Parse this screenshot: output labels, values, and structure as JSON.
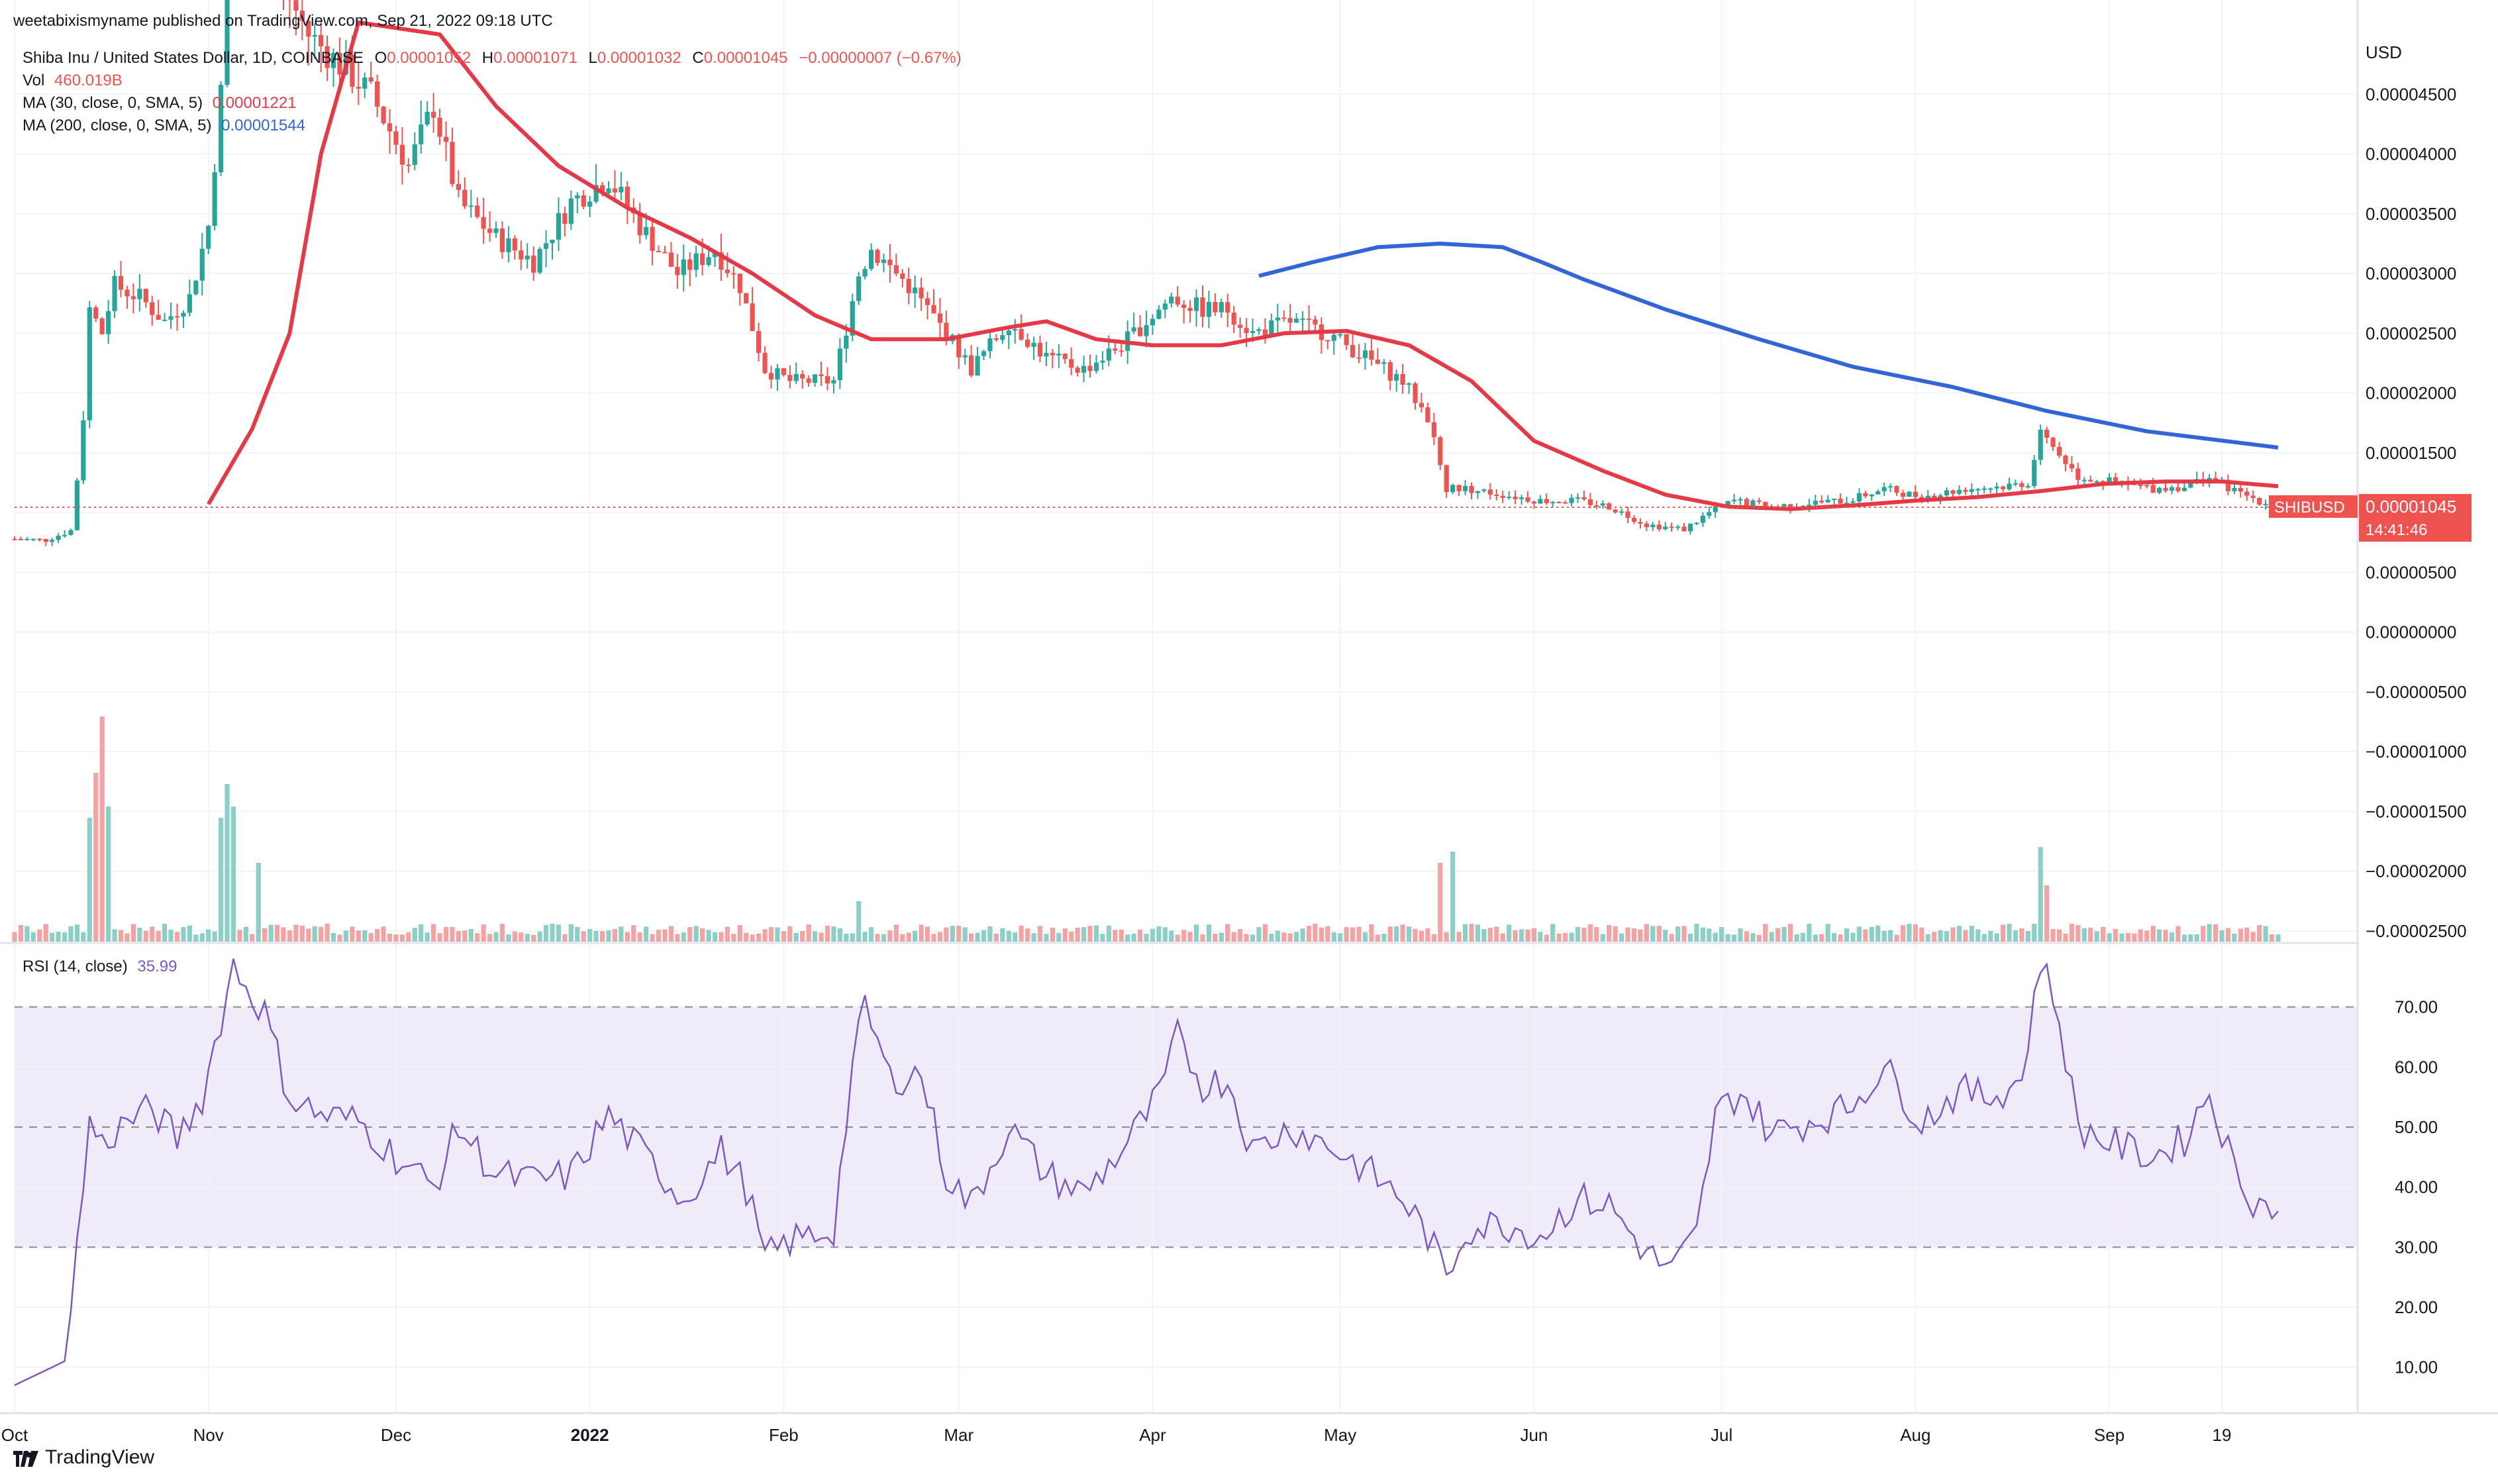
{
  "header": {
    "publisher": "weetabixismyname published on TradingView.com, Sep 21, 2022 09:18 UTC"
  },
  "legend": {
    "symbol": "Shiba Inu / United States Dollar, 1D, COINBASE",
    "ohlc": {
      "o_label": "O",
      "o": "0.00001052",
      "h_label": "H",
      "h": "0.00001071",
      "l_label": "L",
      "l": "0.00001032",
      "c_label": "C",
      "c": "0.00001045",
      "change": "−0.00000007 (−0.67%)"
    },
    "vol_label": "Vol",
    "vol": "460.019B",
    "ma30_label": "MA (30, close, 0, SMA, 5)",
    "ma30": "0.00001221",
    "ma200_label": "MA (200, close, 0, SMA, 5)",
    "ma200": "0.00001544",
    "rsi_label": "RSI (14, close)",
    "rsi": "35.99"
  },
  "price_axis": {
    "currency": "USD",
    "ticks": [
      "0.00004500",
      "0.00004000",
      "0.00003500",
      "0.00003000",
      "0.00002500",
      "0.00002000",
      "0.00001500",
      "0.00001000",
      "0.00000500",
      "0.00000000",
      "−0.00000500",
      "−0.00001000",
      "−0.00001500",
      "−0.00002000",
      "−0.00002500"
    ],
    "tick_values": [
      4.5e-05,
      4e-05,
      3.5e-05,
      3e-05,
      2.5e-05,
      2e-05,
      1.5e-05,
      1e-05,
      5e-06,
      0,
      -5e-06,
      -1e-05,
      -1.5e-05,
      -2e-05,
      -2.5e-05
    ],
    "last_price_label": "0.00001045",
    "symbol_badge": "SHIBUSD",
    "countdown": "14:41:46"
  },
  "rsi_axis": {
    "ticks": [
      "70.00",
      "60.00",
      "50.00",
      "40.00",
      "30.00",
      "20.00",
      "10.00"
    ],
    "tick_values": [
      70,
      60,
      50,
      40,
      30,
      20,
      10
    ],
    "band": [
      30,
      70
    ]
  },
  "time_axis": {
    "labels": [
      "Oct",
      "Nov",
      "Dec",
      "2022",
      "Feb",
      "Mar",
      "Apr",
      "May",
      "Jun",
      "Jul",
      "Aug",
      "Sep",
      "19"
    ],
    "label_days": [
      0,
      31,
      61,
      92,
      123,
      151,
      182,
      212,
      243,
      273,
      304,
      335,
      353
    ]
  },
  "footer": {
    "brand": "TradingView"
  },
  "colors": {
    "up": "#26a69a",
    "down": "#ef5350",
    "up_vol": "#8ccfc6",
    "down_vol": "#f2a3a2",
    "ma30": "#e53946",
    "ma200": "#3265d8",
    "rsi": "#7e57c2",
    "rsi_band": "#efebf8",
    "grid": "#f0f3fa",
    "text": "#131722",
    "axis_text": "#131722"
  },
  "chart_data": {
    "type": "candlestick",
    "title": "Shiba Inu / United States Dollar, 1D, COINBASE",
    "x_start": "2021-09-24",
    "x_end": "2022-09-21",
    "price_range": [
      -2.7e-05,
      5e-05
    ],
    "price_anchors": [
      [
        "2021-09-24",
        7.8e-06
      ],
      [
        "2021-09-29",
        7.7e-06
      ],
      [
        "2021-10-03",
        8.5e-06
      ],
      [
        "2021-10-04",
        1.28e-05
      ],
      [
        "2021-10-05",
        1.8e-05
      ],
      [
        "2021-10-06",
        2.7e-05
      ],
      [
        "2021-10-08",
        2.5e-05
      ],
      [
        "2021-10-10",
        2.9e-05
      ],
      [
        "2021-10-14",
        2.8e-05
      ],
      [
        "2021-10-18",
        2.6e-05
      ],
      [
        "2021-10-22",
        2.8e-05
      ],
      [
        "2021-10-25",
        3.4e-05
      ],
      [
        "2021-10-27",
        4.5e-05
      ],
      [
        "2021-10-28",
        6e-05
      ],
      [
        "2021-11-01",
        5.7e-05
      ],
      [
        "2021-11-05",
        5.5e-05
      ],
      [
        "2021-11-10",
        5e-05
      ],
      [
        "2021-11-16",
        4.7e-05
      ],
      [
        "2021-11-20",
        4.5e-05
      ],
      [
        "2021-11-26",
        3.9e-05
      ],
      [
        "2021-11-30",
        4.4e-05
      ],
      [
        "2021-12-04",
        3.6e-05
      ],
      [
        "2021-12-10",
        3.3e-05
      ],
      [
        "2021-12-16",
        3.1e-05
      ],
      [
        "2021-12-22",
        3.6e-05
      ],
      [
        "2021-12-28",
        3.8e-05
      ],
      [
        "2022-01-02",
        3.4e-05
      ],
      [
        "2022-01-08",
        3e-05
      ],
      [
        "2022-01-14",
        3.2e-05
      ],
      [
        "2022-01-18",
        2.9e-05
      ],
      [
        "2022-01-22",
        2.2e-05
      ],
      [
        "2022-01-26",
        2.1e-05
      ],
      [
        "2022-02-02",
        2.1e-05
      ],
      [
        "2022-02-06",
        3e-05
      ],
      [
        "2022-02-08",
        3.2e-05
      ],
      [
        "2022-02-14",
        2.9e-05
      ],
      [
        "2022-02-20",
        2.5e-05
      ],
      [
        "2022-02-24",
        2.2e-05
      ],
      [
        "2022-03-02",
        2.6e-05
      ],
      [
        "2022-03-08",
        2.3e-05
      ],
      [
        "2022-03-14",
        2.2e-05
      ],
      [
        "2022-03-20",
        2.4e-05
      ],
      [
        "2022-03-28",
        2.8e-05
      ],
      [
        "2022-04-02",
        2.7e-05
      ],
      [
        "2022-04-06",
        2.7e-05
      ],
      [
        "2022-04-10",
        2.5e-05
      ],
      [
        "2022-04-16",
        2.6e-05
      ],
      [
        "2022-04-22",
        2.5e-05
      ],
      [
        "2022-04-28",
        2.3e-05
      ],
      [
        "2022-05-04",
        2.1e-05
      ],
      [
        "2022-05-08",
        1.8e-05
      ],
      [
        "2022-05-11",
        1.2e-05
      ],
      [
        "2022-05-14",
        1.2e-05
      ],
      [
        "2022-05-20",
        1.15e-05
      ],
      [
        "2022-05-26",
        1.1e-05
      ],
      [
        "2022-06-01",
        1.1e-05
      ],
      [
        "2022-06-06",
        1.05e-05
      ],
      [
        "2022-06-12",
        9e-06
      ],
      [
        "2022-06-18",
        8.6e-06
      ],
      [
        "2022-06-22",
        1e-05
      ],
      [
        "2022-06-26",
        1.1e-05
      ],
      [
        "2022-07-02",
        1.05e-05
      ],
      [
        "2022-07-08",
        1.08e-05
      ],
      [
        "2022-07-14",
        1.1e-05
      ],
      [
        "2022-07-20",
        1.2e-05
      ],
      [
        "2022-07-26",
        1.13e-05
      ],
      [
        "2022-08-02",
        1.2e-05
      ],
      [
        "2022-08-08",
        1.22e-05
      ],
      [
        "2022-08-12",
        1.25e-05
      ],
      [
        "2022-08-14",
        1.65e-05
      ],
      [
        "2022-08-16",
        1.55e-05
      ],
      [
        "2022-08-20",
        1.3e-05
      ],
      [
        "2022-08-26",
        1.25e-05
      ],
      [
        "2022-09-01",
        1.2e-05
      ],
      [
        "2022-09-06",
        1.22e-05
      ],
      [
        "2022-09-10",
        1.3e-05
      ],
      [
        "2022-09-14",
        1.18e-05
      ],
      [
        "2022-09-18",
        1.1e-05
      ],
      [
        "2022-09-21",
        1.045e-05
      ]
    ],
    "ma30_series": [
      [
        "2021-10-25",
        1.07e-05
      ],
      [
        "2021-11-01",
        1.7e-05
      ],
      [
        "2021-11-07",
        2.5e-05
      ],
      [
        "2021-11-12",
        4e-05
      ],
      [
        "2021-11-18",
        5.1e-05
      ],
      [
        "2021-12-01",
        5e-05
      ],
      [
        "2021-12-10",
        4.4e-05
      ],
      [
        "2021-12-20",
        3.9e-05
      ],
      [
        "2021-12-31",
        3.55e-05
      ],
      [
        "2022-01-10",
        3.3e-05
      ],
      [
        "2022-01-20",
        3e-05
      ],
      [
        "2022-01-30",
        2.65e-05
      ],
      [
        "2022-02-08",
        2.45e-05
      ],
      [
        "2022-02-20",
        2.45e-05
      ],
      [
        "2022-03-02",
        2.55e-05
      ],
      [
        "2022-03-08",
        2.6e-05
      ],
      [
        "2022-03-16",
        2.45e-05
      ],
      [
        "2022-03-25",
        2.4e-05
      ],
      [
        "2022-04-05",
        2.4e-05
      ],
      [
        "2022-04-15",
        2.5e-05
      ],
      [
        "2022-04-25",
        2.52e-05
      ],
      [
        "2022-05-05",
        2.4e-05
      ],
      [
        "2022-05-15",
        2.1e-05
      ],
      [
        "2022-05-25",
        1.6e-05
      ],
      [
        "2022-06-05",
        1.35e-05
      ],
      [
        "2022-06-15",
        1.15e-05
      ],
      [
        "2022-06-25",
        1.05e-05
      ],
      [
        "2022-07-05",
        1.03e-05
      ],
      [
        "2022-07-15",
        1.06e-05
      ],
      [
        "2022-07-25",
        1.1e-05
      ],
      [
        "2022-08-04",
        1.13e-05
      ],
      [
        "2022-08-14",
        1.18e-05
      ],
      [
        "2022-08-24",
        1.24e-05
      ],
      [
        "2022-09-03",
        1.26e-05
      ],
      [
        "2022-09-12",
        1.26e-05
      ],
      [
        "2022-09-21",
        1.221e-05
      ]
    ],
    "ma200_series": [
      [
        "2022-04-11",
        2.98e-05
      ],
      [
        "2022-04-20",
        3.1e-05
      ],
      [
        "2022-04-30",
        3.22e-05
      ],
      [
        "2022-05-10",
        3.25e-05
      ],
      [
        "2022-05-20",
        3.22e-05
      ],
      [
        "2022-05-26",
        3.1e-05
      ],
      [
        "2022-06-02",
        2.95e-05
      ],
      [
        "2022-06-15",
        2.7e-05
      ],
      [
        "2022-06-30",
        2.45e-05
      ],
      [
        "2022-07-15",
        2.22e-05
      ],
      [
        "2022-07-31",
        2.05e-05
      ],
      [
        "2022-08-15",
        1.85e-05
      ],
      [
        "2022-08-31",
        1.68e-05
      ],
      [
        "2022-09-21",
        1.544e-05
      ]
    ],
    "volume_spikes": [
      [
        "2021-10-06",
        0.55
      ],
      [
        "2021-10-07",
        0.75
      ],
      [
        "2021-10-08",
        1.0
      ],
      [
        "2021-10-09",
        0.6
      ],
      [
        "2021-10-27",
        0.55
      ],
      [
        "2021-10-28",
        0.7
      ],
      [
        "2021-10-29",
        0.6
      ],
      [
        "2021-11-02",
        0.35
      ],
      [
        "2022-02-06",
        0.18
      ],
      [
        "2022-05-10",
        0.35
      ],
      [
        "2022-05-12",
        0.4
      ],
      [
        "2022-08-14",
        0.42
      ],
      [
        "2022-08-15",
        0.25
      ]
    ],
    "rsi_series": [
      [
        "2021-09-24",
        7
      ],
      [
        "2021-10-02",
        11
      ],
      [
        "2021-10-04",
        30
      ],
      [
        "2021-10-06",
        51
      ],
      [
        "2021-10-08",
        47
      ],
      [
        "2021-10-12",
        51
      ],
      [
        "2021-10-16",
        53
      ],
      [
        "2021-10-20",
        48
      ],
      [
        "2021-10-24",
        55
      ],
      [
        "2021-10-27",
        68
      ],
      [
        "2021-10-29",
        77
      ],
      [
        "2021-11-01",
        72
      ],
      [
        "2021-11-03",
        69
      ],
      [
        "2021-11-07",
        55
      ],
      [
        "2021-11-12",
        52
      ],
      [
        "2021-11-18",
        51
      ],
      [
        "2021-11-24",
        45
      ],
      [
        "2021-11-30",
        40
      ],
      [
        "2021-12-04",
        50
      ],
      [
        "2021-12-10",
        42
      ],
      [
        "2021-12-16",
        41
      ],
      [
        "2021-12-22",
        42
      ],
      [
        "2021-12-28",
        52
      ],
      [
        "2022-01-03",
        45
      ],
      [
        "2022-01-09",
        38
      ],
      [
        "2022-01-15",
        46
      ],
      [
        "2022-01-19",
        40
      ],
      [
        "2022-01-22",
        28
      ],
      [
        "2022-01-26",
        31
      ],
      [
        "2022-02-02",
        33
      ],
      [
        "2022-02-05",
        60
      ],
      [
        "2022-02-07",
        70
      ],
      [
        "2022-02-11",
        58
      ],
      [
        "2022-02-16",
        59
      ],
      [
        "2022-02-20",
        42
      ],
      [
        "2022-02-24",
        37
      ],
      [
        "2022-03-02",
        50
      ],
      [
        "2022-03-08",
        42
      ],
      [
        "2022-03-14",
        39
      ],
      [
        "2022-03-20",
        46
      ],
      [
        "2022-03-26",
        55
      ],
      [
        "2022-03-29",
        65
      ],
      [
        "2022-04-02",
        57
      ],
      [
        "2022-04-06",
        58
      ],
      [
        "2022-04-10",
        46
      ],
      [
        "2022-04-16",
        50
      ],
      [
        "2022-04-22",
        47
      ],
      [
        "2022-04-28",
        43
      ],
      [
        "2022-05-04",
        38
      ],
      [
        "2022-05-08",
        32
      ],
      [
        "2022-05-11",
        25
      ],
      [
        "2022-05-14",
        33
      ],
      [
        "2022-05-20",
        34
      ],
      [
        "2022-05-26",
        32
      ],
      [
        "2022-06-01",
        38
      ],
      [
        "2022-06-06",
        37
      ],
      [
        "2022-06-12",
        29
      ],
      [
        "2022-06-16",
        26
      ],
      [
        "2022-06-20",
        32
      ],
      [
        "2022-06-23",
        52
      ],
      [
        "2022-06-27",
        56
      ],
      [
        "2022-07-02",
        49
      ],
      [
        "2022-07-08",
        51
      ],
      [
        "2022-07-14",
        53
      ],
      [
        "2022-07-20",
        60
      ],
      [
        "2022-07-26",
        51
      ],
      [
        "2022-08-01",
        56
      ],
      [
        "2022-08-06",
        55
      ],
      [
        "2022-08-11",
        58
      ],
      [
        "2022-08-14",
        78
      ],
      [
        "2022-08-17",
        68
      ],
      [
        "2022-08-20",
        50
      ],
      [
        "2022-08-26",
        47
      ],
      [
        "2022-09-01",
        45
      ],
      [
        "2022-09-06",
        48
      ],
      [
        "2022-09-10",
        56
      ],
      [
        "2022-09-14",
        43
      ],
      [
        "2022-09-17",
        38
      ],
      [
        "2022-09-21",
        35.99
      ]
    ]
  }
}
